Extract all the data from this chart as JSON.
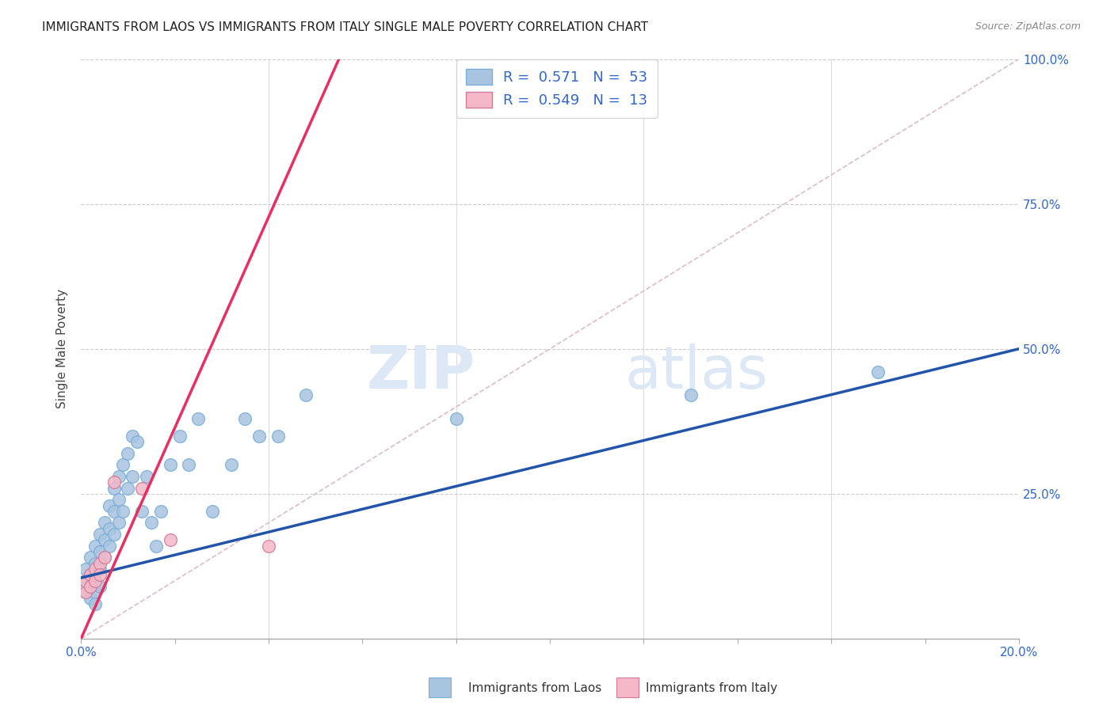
{
  "title": "IMMIGRANTS FROM LAOS VS IMMIGRANTS FROM ITALY SINGLE MALE POVERTY CORRELATION CHART",
  "source": "Source: ZipAtlas.com",
  "ylabel": "Single Male Poverty",
  "legend_label1": "Immigrants from Laos",
  "legend_label2": "Immigrants from Italy",
  "r1": 0.571,
  "n1": 53,
  "r2": 0.549,
  "n2": 13,
  "xmin": 0.0,
  "xmax": 0.2,
  "ymin": 0.0,
  "ymax": 1.0,
  "color_laos": "#a8c4e0",
  "color_italy": "#f4b8c8",
  "line_color_laos": "#2255aa",
  "line_color_italy": "#e83060",
  "xtick_labels": [
    "0.0%",
    "",
    "",
    "",
    "",
    "",
    "",
    "",
    "",
    "20.0%"
  ],
  "xtick_vals": [
    0.0,
    0.02,
    0.04,
    0.06,
    0.08,
    0.1,
    0.12,
    0.14,
    0.16,
    0.2
  ],
  "ytick_labels": [
    "",
    "25.0%",
    "50.0%",
    "75.0%",
    "100.0%"
  ],
  "ytick_vals": [
    0.0,
    0.25,
    0.5,
    0.75,
    1.0
  ],
  "laos_x": [
    0.001,
    0.001,
    0.001,
    0.002,
    0.002,
    0.002,
    0.002,
    0.003,
    0.003,
    0.003,
    0.003,
    0.003,
    0.004,
    0.004,
    0.004,
    0.004,
    0.005,
    0.005,
    0.005,
    0.006,
    0.006,
    0.006,
    0.007,
    0.007,
    0.007,
    0.008,
    0.008,
    0.008,
    0.009,
    0.009,
    0.01,
    0.01,
    0.011,
    0.011,
    0.012,
    0.013,
    0.014,
    0.015,
    0.016,
    0.017,
    0.019,
    0.021,
    0.023,
    0.025,
    0.028,
    0.032,
    0.035,
    0.038,
    0.042,
    0.048,
    0.08,
    0.13,
    0.17
  ],
  "laos_y": [
    0.1,
    0.12,
    0.08,
    0.14,
    0.11,
    0.09,
    0.07,
    0.16,
    0.13,
    0.1,
    0.08,
    0.06,
    0.18,
    0.15,
    0.12,
    0.09,
    0.2,
    0.17,
    0.14,
    0.23,
    0.19,
    0.16,
    0.26,
    0.22,
    0.18,
    0.28,
    0.24,
    0.2,
    0.3,
    0.22,
    0.32,
    0.26,
    0.35,
    0.28,
    0.34,
    0.22,
    0.28,
    0.2,
    0.16,
    0.22,
    0.3,
    0.35,
    0.3,
    0.38,
    0.22,
    0.3,
    0.38,
    0.35,
    0.35,
    0.42,
    0.38,
    0.42,
    0.46
  ],
  "italy_x": [
    0.001,
    0.001,
    0.002,
    0.002,
    0.003,
    0.003,
    0.004,
    0.004,
    0.005,
    0.007,
    0.013,
    0.019,
    0.04
  ],
  "italy_y": [
    0.08,
    0.1,
    0.09,
    0.11,
    0.12,
    0.1,
    0.13,
    0.11,
    0.14,
    0.27,
    0.26,
    0.17,
    0.16
  ],
  "blue_line_x": [
    0.0,
    0.2
  ],
  "blue_line_y": [
    0.105,
    0.5
  ],
  "pink_line_x": [
    0.0,
    0.055
  ],
  "pink_line_y": [
    0.0,
    1.0
  ]
}
